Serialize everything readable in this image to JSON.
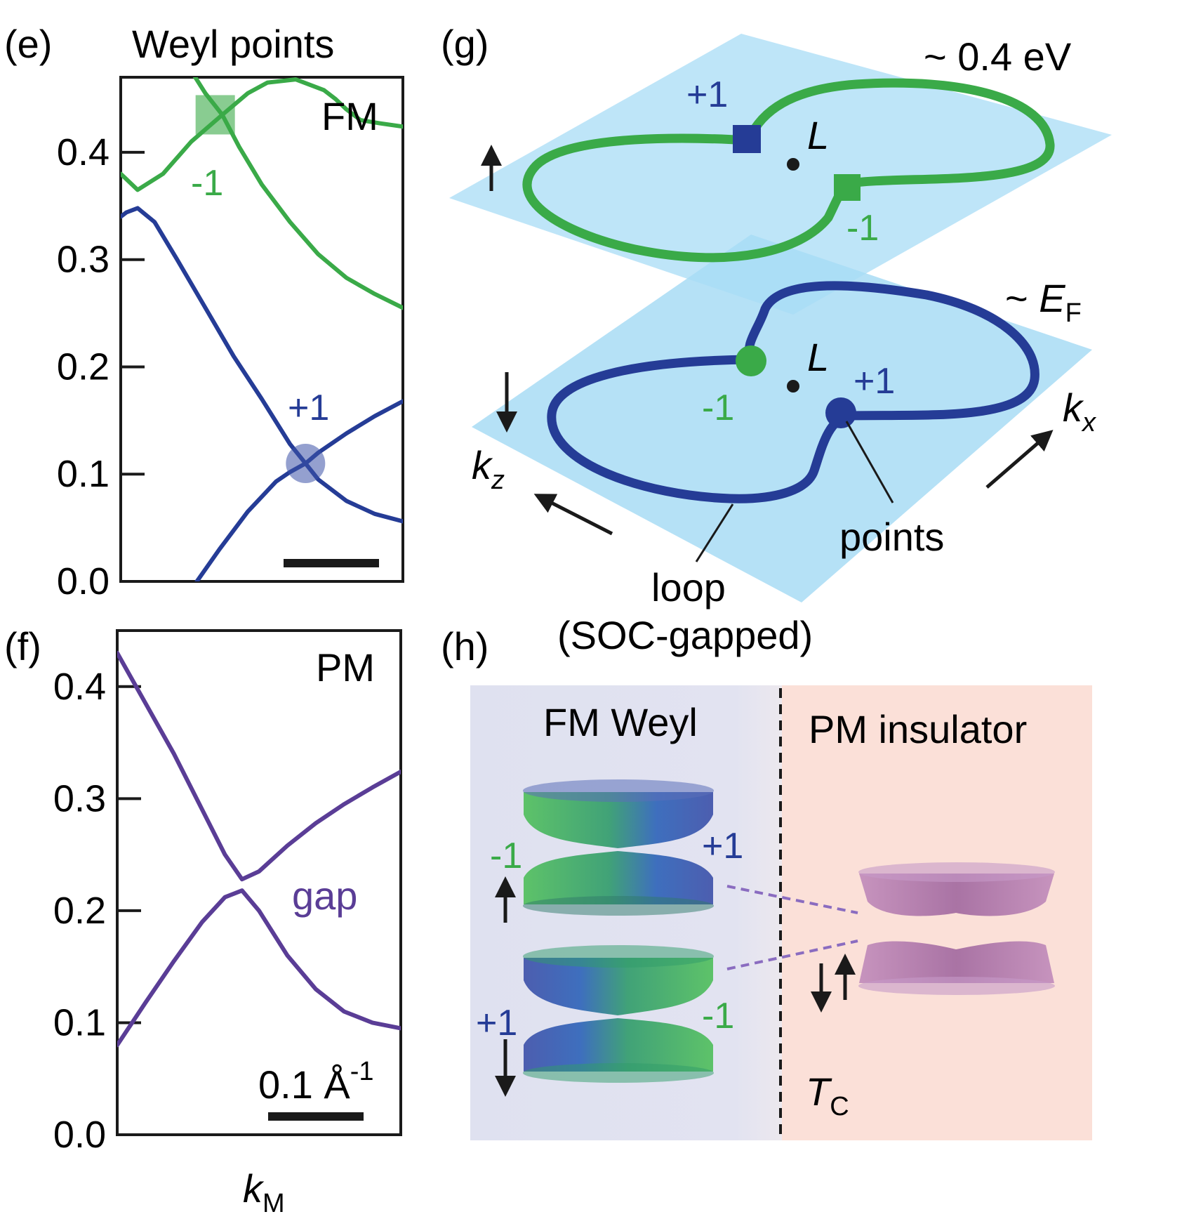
{
  "panels": {
    "e": {
      "label": "(e)",
      "title": "Weyl points",
      "regime": "FM",
      "marker_green": "-1",
      "marker_blue": "+1"
    },
    "f": {
      "label": "(f)",
      "regime": "PM",
      "gap_label": "gap",
      "scalebar": "0.1 Å",
      "scalebar_exp": "-1",
      "xlabel_main": "k",
      "xlabel_sub": "M"
    },
    "g": {
      "label": "(g)",
      "top_energy": "~ 0.4 eV",
      "bottom_energy_prefix": "~ ",
      "bottom_energy_main": "E",
      "bottom_energy_sub": "F",
      "L_top": "L",
      "L_bottom": "L",
      "top_plus": "+1",
      "top_minus": "-1",
      "bottom_minus": "-1",
      "bottom_plus": "+1",
      "kz_main": "k",
      "kz_sub": "z",
      "kx_main": "k",
      "kx_sub": "x",
      "points_label": "points",
      "loop_label": "loop",
      "loop_sub": "(SOC-gapped)"
    },
    "h": {
      "label": "(h)",
      "fm_title": "FM Weyl",
      "pm_title": "PM insulator",
      "upper_cone_left": "-1",
      "upper_cone_right": "+1",
      "lower_cone_left": "+1",
      "lower_cone_right": "-1",
      "tc_main": "T",
      "tc_sub": "C"
    }
  },
  "colors": {
    "green": "#3aaa48",
    "blue": "#253c96",
    "purple": "#5a3d96",
    "plane": "#a8dcf5",
    "fm_bg": "#dfe1f0",
    "pm_bg": "#fbe0d8",
    "pm_cone": "#a15fa0"
  },
  "chart_data": [
    {
      "panel": "e",
      "type": "line",
      "ylim": [
        0.0,
        0.47
      ],
      "yticks": [
        "0.0",
        "0.1",
        "0.2",
        "0.3",
        "0.4"
      ],
      "xlim": [
        0,
        1
      ],
      "series": [
        {
          "color": "green",
          "x": [
            0,
            0.06,
            0.15,
            0.25,
            0.36,
            0.45,
            0.52,
            0.62,
            0.72,
            0.76,
            0.8,
            0.85,
            0.92,
            1.0
          ],
          "y": [
            0.38,
            0.365,
            0.38,
            0.41,
            0.435,
            0.455,
            0.465,
            0.468,
            0.458,
            0.45,
            0.44,
            0.43,
            0.427,
            0.424
          ]
        },
        {
          "color": "green",
          "x": [
            0.24,
            0.3,
            0.36,
            0.42,
            0.5,
            0.6,
            0.7,
            0.8,
            0.9,
            1.0
          ],
          "y": [
            0.48,
            0.455,
            0.435,
            0.405,
            0.37,
            0.335,
            0.305,
            0.283,
            0.268,
            0.255
          ]
        },
        {
          "color": "blue",
          "x": [
            0,
            0.02,
            0.06,
            0.12,
            0.2,
            0.3,
            0.4,
            0.5,
            0.6,
            0.655,
            0.7,
            0.8,
            0.9,
            1.0
          ],
          "y": [
            0.34,
            0.344,
            0.348,
            0.335,
            0.3,
            0.255,
            0.21,
            0.17,
            0.128,
            0.11,
            0.095,
            0.075,
            0.063,
            0.056
          ]
        },
        {
          "color": "blue",
          "x": [
            0.27,
            0.35,
            0.45,
            0.55,
            0.6,
            0.655,
            0.7,
            0.8,
            0.9,
            1.0
          ],
          "y": [
            0.0,
            0.03,
            0.065,
            0.093,
            0.102,
            0.11,
            0.12,
            0.138,
            0.154,
            0.168
          ]
        }
      ],
      "weyl_points": [
        {
          "shape": "square",
          "color": "green",
          "x": 0.335,
          "y": 0.435,
          "chirality": "-1"
        },
        {
          "shape": "circle",
          "color": "blue",
          "x": 0.655,
          "y": 0.11,
          "chirality": "+1"
        }
      ]
    },
    {
      "panel": "f",
      "type": "line",
      "ylim": [
        0.0,
        0.45
      ],
      "yticks": [
        "0.0",
        "0.1",
        "0.2",
        "0.3",
        "0.4"
      ],
      "xlim": [
        0,
        1
      ],
      "series": [
        {
          "color": "purple",
          "x": [
            0,
            0.1,
            0.2,
            0.3,
            0.38,
            0.44,
            0.5,
            0.6,
            0.7,
            0.8,
            0.9,
            1.0
          ],
          "y": [
            0.43,
            0.385,
            0.34,
            0.29,
            0.25,
            0.228,
            0.235,
            0.258,
            0.278,
            0.295,
            0.31,
            0.324
          ]
        },
        {
          "color": "purple",
          "x": [
            0,
            0.1,
            0.2,
            0.3,
            0.38,
            0.44,
            0.5,
            0.6,
            0.7,
            0.8,
            0.9,
            1.0
          ],
          "y": [
            0.08,
            0.118,
            0.155,
            0.19,
            0.212,
            0.218,
            0.2,
            0.16,
            0.13,
            0.11,
            0.1,
            0.095
          ]
        }
      ]
    }
  ]
}
